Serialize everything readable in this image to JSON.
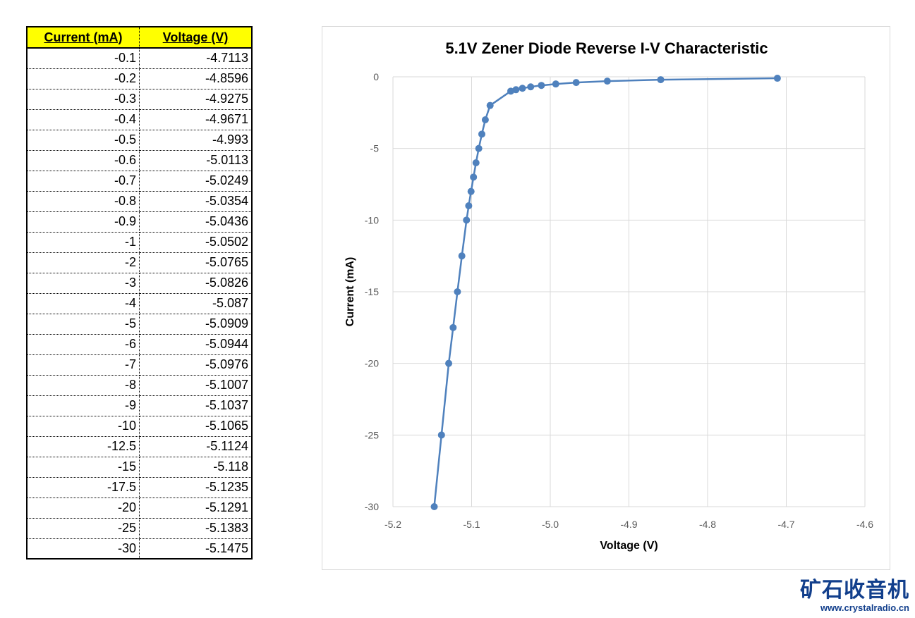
{
  "table": {
    "headers": [
      "Current (mA)",
      "Voltage (V)"
    ],
    "rows": [
      [
        "-0.1",
        "-4.7113"
      ],
      [
        "-0.2",
        "-4.8596"
      ],
      [
        "-0.3",
        "-4.9275"
      ],
      [
        "-0.4",
        "-4.9671"
      ],
      [
        "-0.5",
        "-4.993"
      ],
      [
        "-0.6",
        "-5.0113"
      ],
      [
        "-0.7",
        "-5.0249"
      ],
      [
        "-0.8",
        "-5.0354"
      ],
      [
        "-0.9",
        "-5.0436"
      ],
      [
        "-1",
        "-5.0502"
      ],
      [
        "-2",
        "-5.0765"
      ],
      [
        "-3",
        "-5.0826"
      ],
      [
        "-4",
        "-5.087"
      ],
      [
        "-5",
        "-5.0909"
      ],
      [
        "-6",
        "-5.0944"
      ],
      [
        "-7",
        "-5.0976"
      ],
      [
        "-8",
        "-5.1007"
      ],
      [
        "-9",
        "-5.1037"
      ],
      [
        "-10",
        "-5.1065"
      ],
      [
        "-12.5",
        "-5.1124"
      ],
      [
        "-15",
        "-5.118"
      ],
      [
        "-17.5",
        "-5.1235"
      ],
      [
        "-20",
        "-5.1291"
      ],
      [
        "-25",
        "-5.1383"
      ],
      [
        "-30",
        "-5.1475"
      ]
    ]
  },
  "chart_data": {
    "type": "scatter",
    "title": "5.1V Zener Diode Reverse I-V Characteristic",
    "xlabel": "Voltage (V)",
    "ylabel": "Current (mA)",
    "xlim": [
      -5.2,
      -4.6
    ],
    "ylim": [
      -30,
      0
    ],
    "xticks": [
      -5.2,
      -5.1,
      -5.0,
      -4.9,
      -4.8,
      -4.7,
      -4.6
    ],
    "xtick_labels": [
      "-5.2",
      "-5.1",
      "-5.0",
      "-4.9",
      "-4.8",
      "-4.7",
      "-4.6"
    ],
    "yticks": [
      0,
      -5,
      -10,
      -15,
      -20,
      -25,
      -30
    ],
    "ytick_labels": [
      "0",
      "-5",
      "-10",
      "-15",
      "-20",
      "-25",
      "-30"
    ],
    "grid": true,
    "markers": true,
    "color": "#4f81bd",
    "x": [
      -4.7113,
      -4.8596,
      -4.9275,
      -4.9671,
      -4.993,
      -5.0113,
      -5.0249,
      -5.0354,
      -5.0436,
      -5.0502,
      -5.0765,
      -5.0826,
      -5.087,
      -5.0909,
      -5.0944,
      -5.0976,
      -5.1007,
      -5.1037,
      -5.1065,
      -5.1124,
      -5.118,
      -5.1235,
      -5.1291,
      -5.1383,
      -5.1475
    ],
    "y": [
      -0.1,
      -0.2,
      -0.3,
      -0.4,
      -0.5,
      -0.6,
      -0.7,
      -0.8,
      -0.9,
      -1,
      -2,
      -3,
      -4,
      -5,
      -6,
      -7,
      -8,
      -9,
      -10,
      -12.5,
      -15,
      -17.5,
      -20,
      -25,
      -30
    ]
  },
  "logo": {
    "text": "矿石收音机",
    "url": "www.crystalradio.cn"
  },
  "colors": {
    "header_bg": "#ffff00",
    "series": "#4f81bd",
    "logo": "#123f8c"
  }
}
